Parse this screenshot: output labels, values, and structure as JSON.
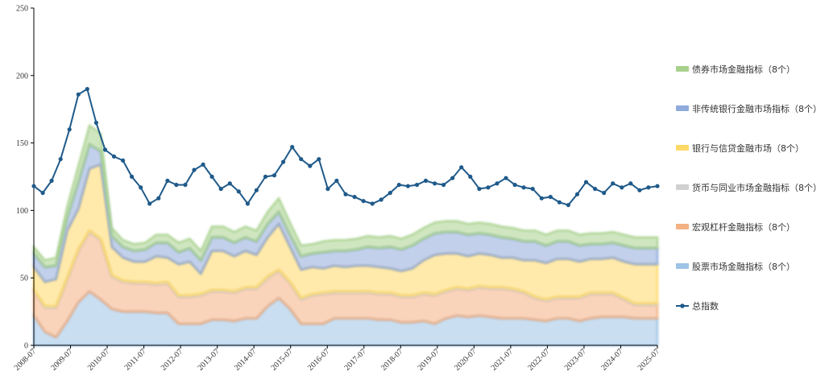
{
  "chart_data": {
    "type": "area",
    "stacked": true,
    "ylim": [
      0,
      250
    ],
    "yticks": [
      0,
      50,
      100,
      150,
      200,
      250
    ],
    "xticks": [
      "2008-07",
      "2009-07",
      "2010-07",
      "2011-07",
      "2012-07",
      "2013-07",
      "2014-07",
      "2015-07",
      "2016-07",
      "2017-07",
      "2018-07",
      "2019-07",
      "2020-07",
      "2021-07",
      "2022-07",
      "2023-07",
      "2024-07",
      "2025-07"
    ],
    "x_start": "2008-07",
    "x_end": "2025-07",
    "grid": false,
    "legend_position": "right",
    "series": [
      {
        "name": "股票市场金融指标（8个）",
        "color": "#9dc3e6",
        "values": [
          22,
          10,
          6,
          18,
          32,
          40,
          34,
          27,
          25,
          25,
          25,
          24,
          24,
          16,
          16,
          16,
          19,
          19,
          18,
          20,
          20,
          29,
          35,
          27,
          16,
          16,
          16,
          20,
          20,
          20,
          20,
          19,
          19,
          17,
          17,
          18,
          16,
          20,
          22,
          21,
          22,
          21,
          20,
          20,
          20,
          19,
          18,
          20,
          20,
          18,
          20,
          21,
          21,
          21,
          20,
          20,
          20
        ]
      },
      {
        "name": "宏观杠杆金融指标（8个）",
        "color": "#f4b183",
        "values": [
          18,
          18,
          22,
          31,
          38,
          44,
          44,
          24,
          22,
          21,
          21,
          21,
          22,
          20,
          20,
          21,
          21,
          21,
          21,
          22,
          22,
          21,
          20,
          19,
          18,
          21,
          22,
          19,
          19,
          19,
          19,
          19,
          19,
          19,
          19,
          20,
          21,
          20,
          20,
          20,
          21,
          21,
          22,
          21,
          19,
          16,
          15,
          15,
          15,
          17,
          18,
          17,
          17,
          13,
          10,
          10,
          10
        ]
      },
      {
        "name": "货币与同业市场金融指标（8个）",
        "color": "#d0d0d0",
        "values": [
          1,
          1,
          1,
          1,
          1,
          1,
          1,
          1,
          1,
          1,
          1,
          1,
          1,
          1,
          1,
          1,
          1,
          1,
          1,
          1,
          1,
          1,
          1,
          1,
          1,
          1,
          1,
          1,
          1,
          1,
          1,
          1,
          1,
          1,
          1,
          1,
          1,
          1,
          1,
          1,
          1,
          1,
          1,
          1,
          1,
          1,
          1,
          1,
          1,
          1,
          1,
          1,
          1,
          1,
          1,
          1,
          1
        ]
      },
      {
        "name": "银行与信贷金融市场（8个）",
        "color": "#ffd966",
        "values": [
          17,
          18,
          20,
          35,
          30,
          46,
          55,
          21,
          17,
          15,
          15,
          20,
          18,
          23,
          25,
          15,
          29,
          29,
          26,
          27,
          24,
          29,
          34,
          26,
          21,
          20,
          18,
          19,
          18,
          19,
          19,
          19,
          18,
          18,
          20,
          24,
          29,
          27,
          25,
          24,
          24,
          24,
          22,
          23,
          23,
          27,
          27,
          28,
          28,
          26,
          25,
          25,
          26,
          27,
          29,
          29,
          29
        ]
      },
      {
        "name": "非传统银行金融市场指标（8个）",
        "color": "#8faadc",
        "values": [
          10,
          11,
          10,
          10,
          20,
          18,
          10,
          8,
          8,
          8,
          9,
          10,
          11,
          9,
          10,
          10,
          10,
          10,
          10,
          10,
          10,
          10,
          9,
          9,
          10,
          10,
          12,
          11,
          12,
          12,
          14,
          14,
          16,
          16,
          17,
          16,
          16,
          16,
          16,
          16,
          15,
          15,
          15,
          14,
          14,
          14,
          13,
          13,
          13,
          12,
          11,
          11,
          11,
          12,
          12,
          12,
          12
        ]
      },
      {
        "name": "债券市场金融指标（8个）",
        "color": "#a9d18e",
        "values": [
          5,
          5,
          6,
          8,
          12,
          14,
          13,
          6,
          5,
          5,
          5,
          6,
          6,
          7,
          7,
          7,
          8,
          8,
          8,
          8,
          8,
          9,
          10,
          9,
          8,
          7,
          8,
          8,
          8,
          8,
          8,
          8,
          8,
          8,
          8,
          8,
          8,
          8,
          8,
          8,
          8,
          8,
          8,
          8,
          8,
          8,
          8,
          8,
          8,
          8,
          8,
          8,
          8,
          8,
          8,
          8,
          8
        ]
      }
    ],
    "total": {
      "name": "总指数",
      "color": "#1f5a8a",
      "values": [
        118,
        113,
        122,
        138,
        160,
        186,
        190,
        165,
        145,
        140,
        137,
        125,
        117,
        105,
        109,
        122,
        119,
        119,
        130,
        134,
        125,
        116,
        120,
        114,
        105,
        115,
        125,
        126,
        136,
        147,
        138,
        133,
        138,
        116,
        122,
        112,
        110,
        107,
        105,
        108,
        113,
        119,
        118,
        119,
        122,
        120,
        119,
        124,
        132,
        125,
        116,
        117,
        120,
        124,
        119,
        117,
        116,
        109,
        110,
        106,
        104,
        112,
        121,
        116,
        113,
        120,
        117,
        120,
        115,
        117,
        118
      ]
    }
  }
}
